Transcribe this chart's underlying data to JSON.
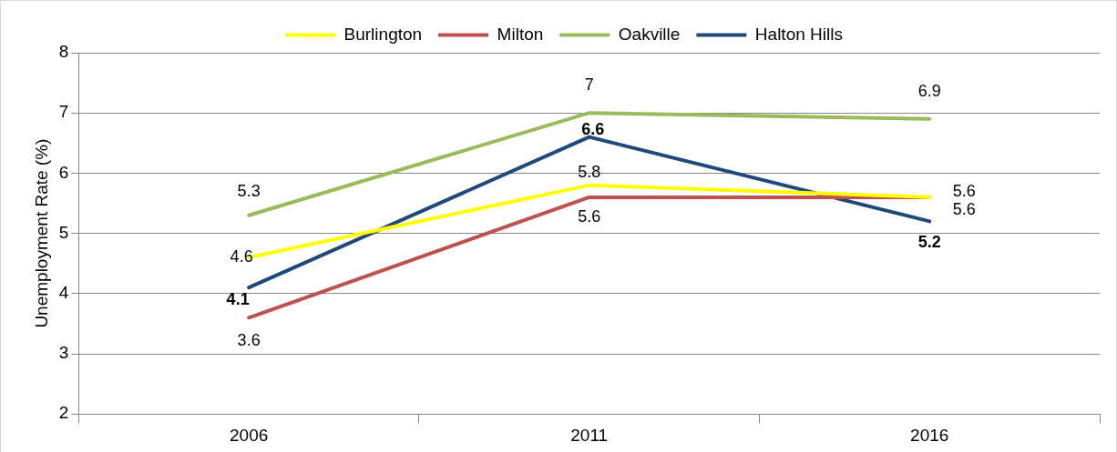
{
  "chart_data": {
    "type": "line",
    "ylabel": "Unemployment Rate (%)",
    "categories": [
      "2006",
      "2011",
      "2016"
    ],
    "series": [
      {
        "name": "Burlington",
        "color": "#ffff00",
        "values": [
          4.6,
          5.8,
          5.6
        ]
      },
      {
        "name": "Milton",
        "color": "#c0504d",
        "values": [
          3.6,
          5.6,
          5.6
        ]
      },
      {
        "name": "Oakville",
        "color": "#9bbb59",
        "values": [
          5.3,
          7,
          6.9
        ]
      },
      {
        "name": "Halton Hills",
        "color": "#1f497d",
        "values": [
          4.1,
          6.6,
          5.2
        ]
      }
    ],
    "ylim": [
      2,
      8
    ],
    "yticks": [
      2,
      3,
      4,
      5,
      6,
      7,
      8
    ],
    "grid": "y",
    "legend": "top",
    "data_labels": true,
    "marker": "none"
  }
}
